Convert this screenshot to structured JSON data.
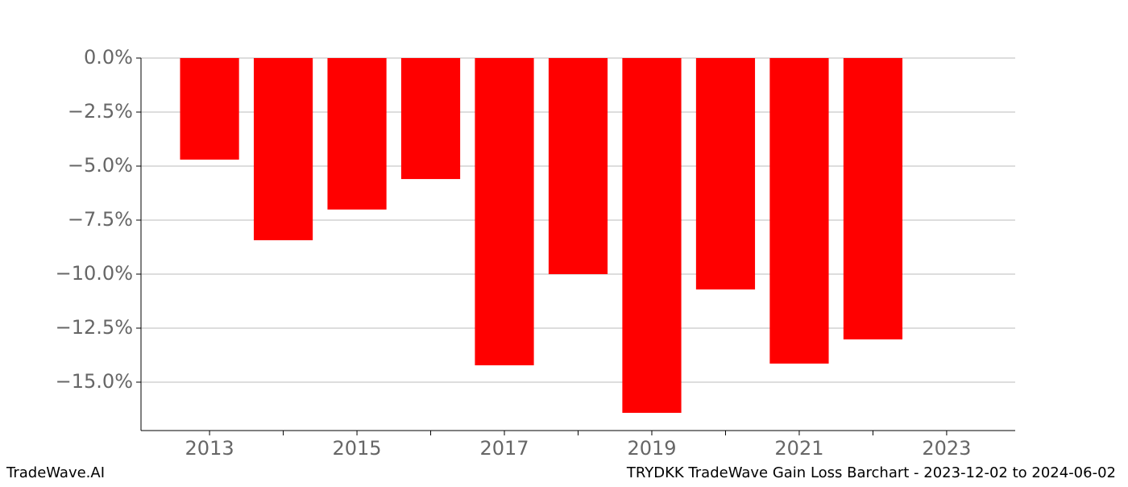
{
  "chart_data": {
    "type": "bar",
    "title": "TRYDKK TradeWave Gain Loss Barchart - 2023-12-02 to 2024-06-02",
    "watermark": "TradeWave.AI",
    "x": [
      2013,
      2014,
      2015,
      2016,
      2017,
      2018,
      2019,
      2020,
      2021,
      2022
    ],
    "values": [
      -4.7,
      -8.43,
      -7.01,
      -5.6,
      -14.22,
      -10.0,
      -16.42,
      -10.71,
      -14.14,
      -13.02
    ],
    "color": "#ff0000",
    "xlim": [
      2012.07,
      2023.93
    ],
    "xticks": [
      2013,
      2015,
      2017,
      2019,
      2021,
      2023
    ],
    "xminorticks": [
      2014,
      2016,
      2018,
      2020,
      2022
    ],
    "ylim": [
      -17.24,
      0
    ],
    "yticks": [
      {
        "value": 0,
        "label": "0.0%"
      },
      {
        "value": -2.5,
        "label": "−2.5%"
      },
      {
        "value": -5,
        "label": "−5.0%"
      },
      {
        "value": -7.5,
        "label": "−7.5%"
      },
      {
        "value": -10,
        "label": "−10.0%"
      },
      {
        "value": -12.5,
        "label": "−12.5%"
      },
      {
        "value": -15,
        "label": "−15.0%"
      }
    ],
    "grid": true
  }
}
